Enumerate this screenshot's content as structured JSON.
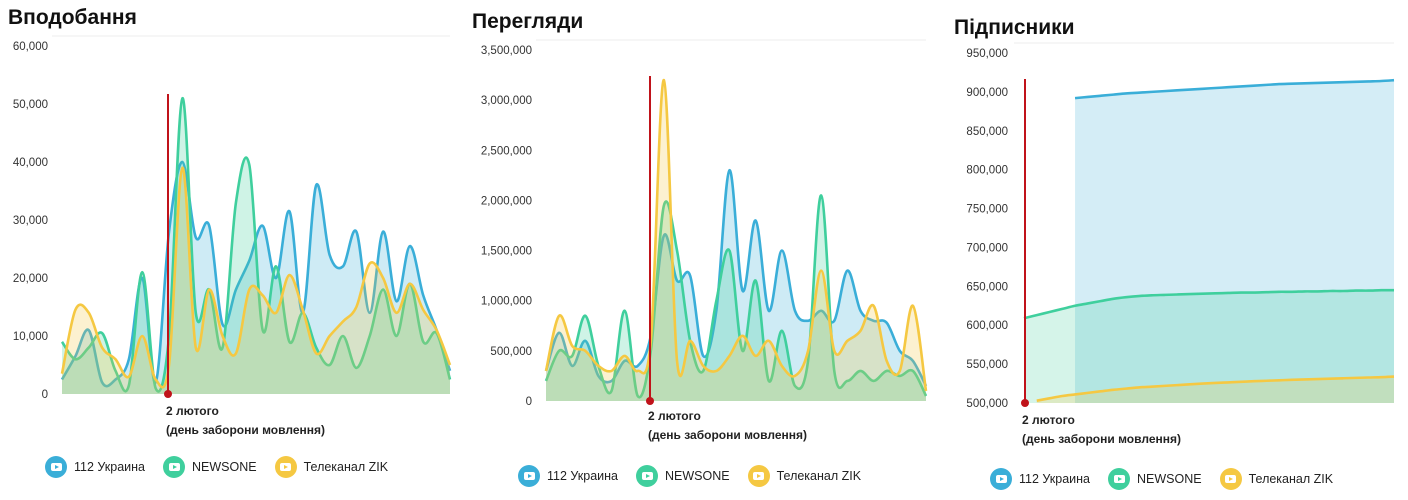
{
  "colors": {
    "s112": "#3aaed8",
    "newsone": "#3fcf9d",
    "zik": "#f5c842",
    "marker": "#c0131a"
  },
  "icons": [
    "youtube-icon"
  ],
  "chart_data": [
    {
      "type": "area",
      "title": "Вподобання",
      "ylim": [
        0,
        60000
      ],
      "yticks": [
        "60,000",
        "50,000",
        "40,000",
        "30,000",
        "20,000",
        "10,000",
        "0"
      ],
      "ytick_values": [
        60000,
        50000,
        40000,
        30000,
        20000,
        10000,
        0
      ],
      "x_count": 30,
      "marker_index": 8,
      "annotation": [
        "2 лютого",
        "(день заборони мовлення)"
      ],
      "series": [
        {
          "name": "112 Украина",
          "color_key": "s112",
          "values": [
            2500,
            6500,
            11000,
            2000,
            2500,
            6000,
            20000,
            2000,
            28000,
            40000,
            27000,
            29000,
            12000,
            18000,
            23000,
            29000,
            20000,
            31500,
            14000,
            36000,
            24000,
            22000,
            28000,
            14000,
            28000,
            16000,
            25500,
            17000,
            11000,
            4000
          ]
        },
        {
          "name": "NEWSONE",
          "color_key": "newsone",
          "values": [
            9000,
            6000,
            8000,
            10500,
            4000,
            1500,
            21000,
            1000,
            10000,
            51000,
            14000,
            18000,
            8000,
            33000,
            39500,
            11000,
            22000,
            9000,
            14000,
            8000,
            5000,
            10000,
            4500,
            10000,
            18000,
            10000,
            19000,
            9000,
            10500,
            2500
          ]
        },
        {
          "name": "Телеканал ZIK",
          "color_key": "zik",
          "values": [
            3500,
            14500,
            14000,
            8000,
            6000,
            3000,
            10000,
            2500,
            5000,
            39000,
            8000,
            18000,
            10000,
            7000,
            18000,
            17000,
            14000,
            20500,
            14500,
            7000,
            10000,
            12500,
            15000,
            22500,
            20000,
            14000,
            19000,
            14500,
            11000,
            5000
          ]
        }
      ],
      "legend": [
        "112 Украина",
        "NEWSONE",
        "Телеканал ZIK"
      ]
    },
    {
      "type": "area",
      "title": "Перегляди",
      "ylim": [
        0,
        3500000
      ],
      "yticks": [
        "3,500,000",
        "3,000,000",
        "2,500,000",
        "2,000,000",
        "1,500,000",
        "1,000,000",
        "500,000",
        "0"
      ],
      "ytick_values": [
        3500000,
        3000000,
        2500000,
        2000000,
        1500000,
        1000000,
        500000,
        0
      ],
      "x_count": 30,
      "marker_index": 8,
      "annotation": [
        "2 лютого",
        "(день заборони мовлення)"
      ],
      "series": [
        {
          "name": "112 Украина",
          "color_key": "s112",
          "values": [
            300000,
            680000,
            350000,
            600000,
            250000,
            200000,
            400000,
            350000,
            650000,
            1650000,
            1200000,
            1250000,
            450000,
            900000,
            2300000,
            1100000,
            1800000,
            900000,
            1500000,
            900000,
            800000,
            900000,
            800000,
            1300000,
            900000,
            800000,
            780000,
            500000,
            400000,
            150000
          ]
        },
        {
          "name": "NEWSONE",
          "color_key": "newsone",
          "values": [
            200000,
            500000,
            450000,
            850000,
            350000,
            100000,
            900000,
            50000,
            500000,
            1950000,
            1500000,
            600000,
            300000,
            1000000,
            1500000,
            500000,
            1200000,
            200000,
            700000,
            150000,
            400000,
            2050000,
            300000,
            200000,
            300000,
            200000,
            300000,
            250000,
            300000,
            50000
          ]
        },
        {
          "name": "Телеканал ZIK",
          "color_key": "zik",
          "values": [
            300000,
            850000,
            550000,
            500000,
            350000,
            300000,
            450000,
            300000,
            600000,
            3200000,
            400000,
            600000,
            350000,
            300000,
            450000,
            650000,
            450000,
            600000,
            350000,
            250000,
            500000,
            1300000,
            500000,
            600000,
            700000,
            950000,
            400000,
            300000,
            950000,
            100000
          ]
        }
      ],
      "legend": [
        "112 Украина",
        "NEWSONE",
        "Телеканал ZIK"
      ]
    },
    {
      "type": "area",
      "title": "Підписники",
      "ylim": [
        500000,
        950000
      ],
      "yticks": [
        "950,000",
        "900,000",
        "850,000",
        "800,000",
        "750,000",
        "700,000",
        "650,000",
        "600,000",
        "550,000",
        "500,000"
      ],
      "ytick_values": [
        950000,
        900000,
        850000,
        800000,
        750000,
        700000,
        650000,
        600000,
        550000,
        500000
      ],
      "x_count": 30,
      "marker_index": 0,
      "annotation": [
        "2 лютого",
        "(день заборони мовлення)"
      ],
      "series": [
        {
          "name": "112 Украина",
          "color_key": "s112",
          "start_index": 4,
          "values": [
            null,
            null,
            null,
            null,
            892000,
            893500,
            895000,
            896500,
            898000,
            899000,
            900000,
            901000,
            902000,
            903000,
            904000,
            905000,
            906000,
            907000,
            908000,
            909000,
            910000,
            910500,
            911000,
            911500,
            912000,
            912500,
            913000,
            913500,
            914000,
            915000
          ]
        },
        {
          "name": "NEWSONE",
          "color_key": "newsone",
          "start_index": 0,
          "values": [
            609000,
            613000,
            617000,
            621000,
            625000,
            628000,
            631000,
            634000,
            636000,
            637500,
            638500,
            639000,
            639500,
            640000,
            640500,
            641000,
            641500,
            642000,
            642000,
            642500,
            643000,
            643000,
            643500,
            643500,
            644000,
            644000,
            644500,
            644500,
            645000,
            645000
          ]
        },
        {
          "name": "Телеканал ZIK",
          "color_key": "zik",
          "start_index": 1,
          "values": [
            null,
            503000,
            506000,
            509000,
            511000,
            513000,
            515000,
            517000,
            518500,
            520000,
            521000,
            522000,
            523000,
            524000,
            525000,
            525800,
            526500,
            527200,
            528000,
            528600,
            529200,
            529800,
            530300,
            530800,
            531300,
            531800,
            532300,
            532800,
            533200,
            534000
          ]
        }
      ],
      "legend": [
        "112 Украина",
        "NEWSONE",
        "Телеканал ZIK"
      ]
    }
  ]
}
